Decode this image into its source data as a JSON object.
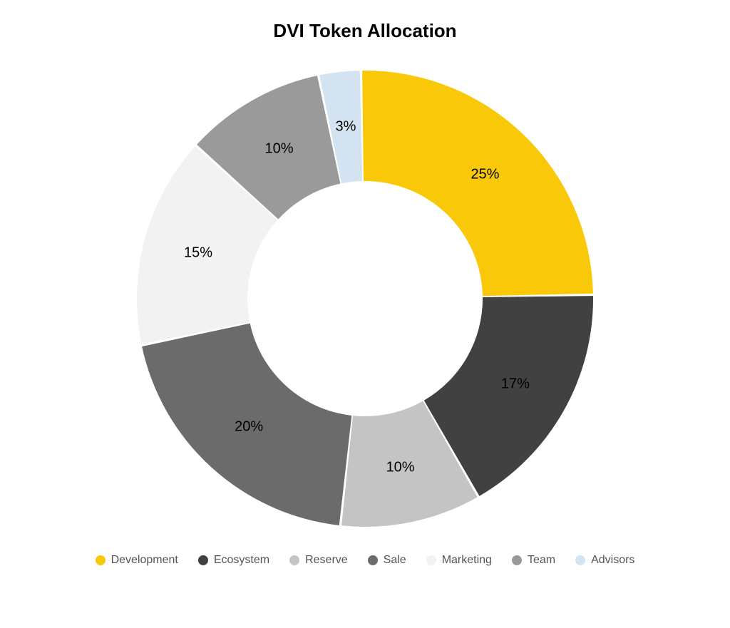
{
  "chart": {
    "type": "donut",
    "title": "DVI Token Allocation",
    "title_fontsize": 26,
    "title_fontweight": 700,
    "title_color": "#000000",
    "background_color": "#ffffff",
    "outer_radius": 320,
    "inner_radius": 165,
    "label_fontsize": 20,
    "label_color": "#000000",
    "legend_fontsize": 16,
    "legend_color": "#555555",
    "slice_gap_deg": 0.6,
    "start_angle_deg": -1,
    "slices": [
      {
        "name": "Development",
        "value": 25,
        "label": "25%",
        "color": "#f9c909"
      },
      {
        "name": "Ecosystem",
        "value": 17,
        "label": "17%",
        "color": "#414141"
      },
      {
        "name": "Reserve",
        "value": 10,
        "label": "10%",
        "color": "#c4c4c4"
      },
      {
        "name": "Sale",
        "value": 20,
        "label": "20%",
        "color": "#6b6b6b"
      },
      {
        "name": "Marketing",
        "value": 15,
        "label": "15%",
        "color": "#f2f2f2"
      },
      {
        "name": "Team",
        "value": 10,
        "label": "10%",
        "color": "#9a9a9a"
      },
      {
        "name": "Advisors",
        "value": 3,
        "label": "3%",
        "color": "#d3e3f1"
      }
    ]
  }
}
